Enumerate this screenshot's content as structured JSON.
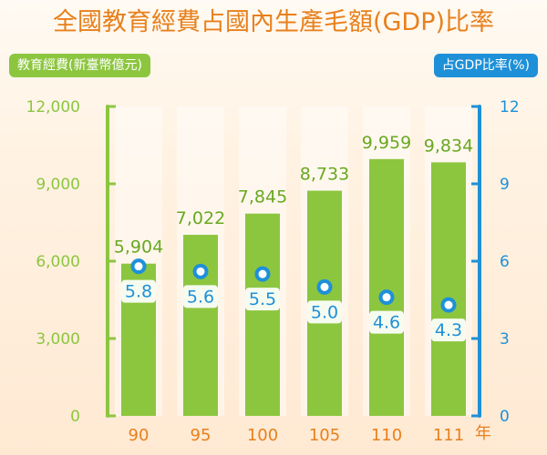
{
  "title": "全國教育經費占國內生產毛額(GDP)比率",
  "left_axis_label": "教育經費(新臺幣億元)",
  "right_axis_label": "占GDP比率(%)",
  "x_unit": "年",
  "colors": {
    "title": "#e8801c",
    "bar": "#8cc63f",
    "rate": "#1e90d8",
    "x_ticks": "#e8801c"
  },
  "chart_data": {
    "type": "bar",
    "title": "全國教育經費占國內生產毛額(GDP)比率",
    "xlabel": "年",
    "categories": [
      "90",
      "95",
      "100",
      "105",
      "110",
      "111"
    ],
    "series": [
      {
        "name": "教育經費(新臺幣億元)",
        "type": "bar",
        "axis": "left",
        "values": [
          5904,
          7022,
          7845,
          8733,
          9959,
          9834
        ],
        "labels": [
          "5,904",
          "7,022",
          "7,845",
          "8,733",
          "9,959",
          "9,834"
        ]
      },
      {
        "name": "占GDP比率(%)",
        "type": "scatter",
        "axis": "right",
        "values": [
          5.8,
          5.6,
          5.5,
          5.0,
          4.6,
          4.3
        ],
        "labels": [
          "5.8",
          "5.6",
          "5.5",
          "5.0",
          "4.6",
          "4.3"
        ]
      }
    ],
    "left_axis": {
      "ylim": [
        0,
        12000
      ],
      "ticks": [
        "0",
        "3,000",
        "6,000",
        "9,000",
        "12,000"
      ]
    },
    "right_axis": {
      "ylim": [
        0,
        12
      ],
      "ticks": [
        "0",
        "3",
        "6",
        "9",
        "12"
      ]
    },
    "grid": false,
    "legend": "top"
  }
}
